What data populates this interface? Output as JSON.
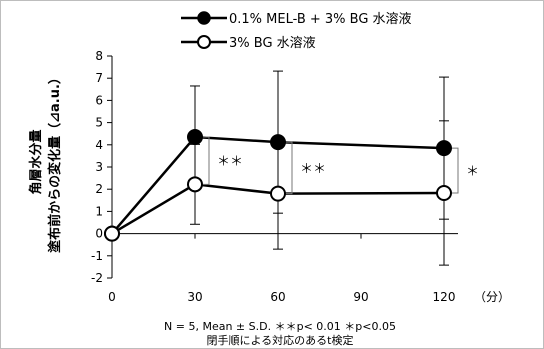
{
  "chart_data": {
    "type": "line",
    "x": [
      0,
      30,
      60,
      90,
      120
    ],
    "x_ticks": [
      "0",
      "30",
      "60",
      "90",
      "120"
    ],
    "x_unit": "（分）",
    "y_ticks": [
      "8",
      "7",
      "6",
      "5",
      "4",
      "3",
      "2",
      "1",
      "0",
      "-1",
      "-2"
    ],
    "ylim": [
      -2,
      8
    ],
    "xlim": [
      0,
      120
    ],
    "ylabel_lines": [
      "角層水分量",
      "塗布前からの変化量（⊿a.u.）"
    ],
    "series": [
      {
        "name": "0.1% MEL-B + 3% BG 水溶液",
        "marker": "filled-circle",
        "color": "#000000",
        "points": [
          {
            "x": 0,
            "y": 0,
            "sd": 0
          },
          {
            "x": 30,
            "y": 4.35,
            "sd": 2.3
          },
          {
            "x": 60,
            "y": 4.12,
            "sd": 3.2
          },
          {
            "x": 120,
            "y": 3.85,
            "sd": 3.2
          }
        ]
      },
      {
        "name": "3% BG 水溶液",
        "marker": "open-circle",
        "color": "#000000",
        "points": [
          {
            "x": 0,
            "y": 0,
            "sd": 0
          },
          {
            "x": 30,
            "y": 2.22,
            "sd": 1.8
          },
          {
            "x": 60,
            "y": 1.8,
            "sd": 2.5
          },
          {
            "x": 120,
            "y": 1.83,
            "sd": 3.25
          }
        ]
      }
    ],
    "significance": [
      {
        "x": 30,
        "label": "＊＊"
      },
      {
        "x": 60,
        "label": "＊＊"
      },
      {
        "x": 120,
        "label": "＊"
      }
    ],
    "footnote_lines": [
      "N = 5, Mean ± S.D.  ＊＊p< 0.01 ＊p<0.05",
      "閉手順による対応のあるt検定"
    ],
    "grid": false,
    "legend_position": "top"
  }
}
